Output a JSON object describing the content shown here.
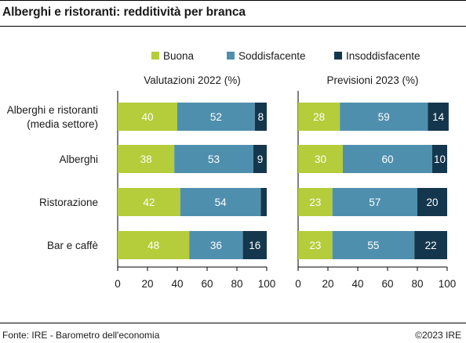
{
  "title": "Alberghi e ristoranti: redditività per branca",
  "source": "Fonte: IRE - Barometro dell'economia",
  "copyright": "©2023 IRE",
  "colors": {
    "Buona": "#b5cc3b",
    "Soddisfacente": "#4f8fae",
    "Insoddisfacente": "#14374d"
  },
  "chart_data": [
    {
      "type": "bar",
      "orientation": "horizontal",
      "stacked": true,
      "title": "Valutazioni 2022 (%)",
      "categories": [
        "Alberghi e ristoranti\n(media settore)",
        "Alberghi",
        "Ristorazione",
        "Bar e caffè"
      ],
      "series": [
        {
          "name": "Buona",
          "values": [
            40,
            38,
            42,
            48
          ],
          "labels": [
            "40",
            "38",
            "42",
            "48"
          ]
        },
        {
          "name": "Soddisfacente",
          "values": [
            52,
            53,
            54,
            36
          ],
          "labels": [
            "52",
            "53",
            "54",
            "36"
          ]
        },
        {
          "name": "Insoddisfacente",
          "values": [
            8,
            9,
            4,
            16
          ],
          "labels": [
            "8",
            "9",
            "",
            "16"
          ]
        }
      ],
      "xlim": [
        0,
        100
      ],
      "xticks": [
        "0",
        "20",
        "40",
        "60",
        "80",
        "100"
      ],
      "legend": "top"
    },
    {
      "type": "bar",
      "orientation": "horizontal",
      "stacked": true,
      "title": "Previsioni 2023 (%)",
      "categories": [
        "Alberghi e ristoranti\n(media settore)",
        "Alberghi",
        "Ristorazione",
        "Bar e caffè"
      ],
      "series": [
        {
          "name": "Buona",
          "values": [
            28,
            30,
            23,
            23
          ],
          "labels": [
            "28",
            "30",
            "23",
            "23"
          ]
        },
        {
          "name": "Soddisfacente",
          "values": [
            59,
            60,
            57,
            55
          ],
          "labels": [
            "59",
            "60",
            "57",
            "55"
          ]
        },
        {
          "name": "Insoddisfacente",
          "values": [
            14,
            10,
            20,
            22
          ],
          "labels": [
            "14",
            "10",
            "20",
            "22"
          ]
        }
      ],
      "xlim": [
        0,
        100
      ],
      "xticks": [
        "0",
        "20",
        "40",
        "60",
        "80",
        "100"
      ],
      "legend": "top"
    }
  ]
}
